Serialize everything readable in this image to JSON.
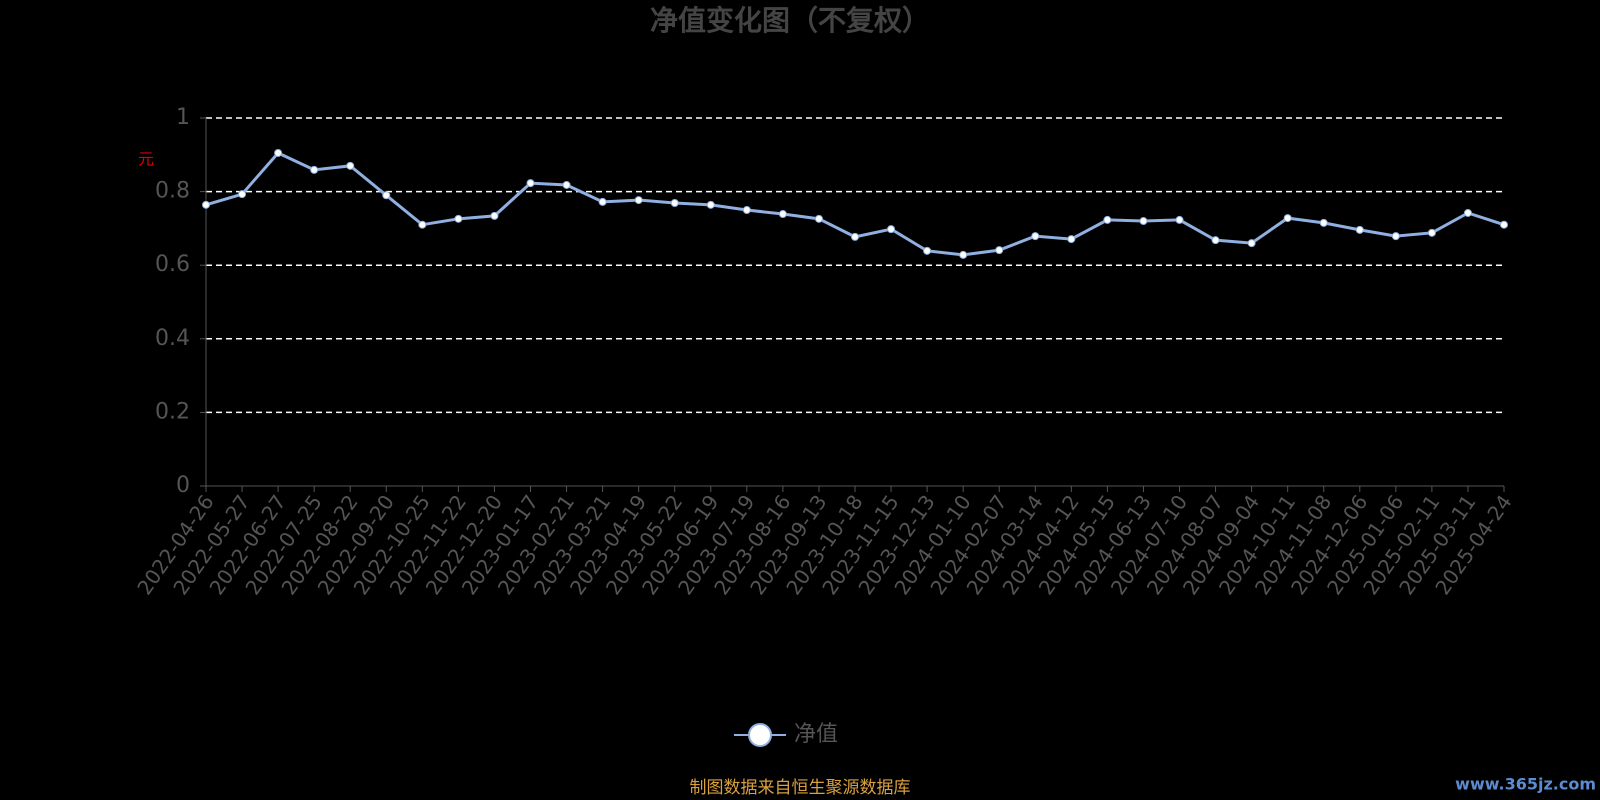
{
  "chart_data": {
    "type": "line",
    "title": "净值变化图（不复权）",
    "y_label": "元",
    "categories": [
      "2022-04-26",
      "2022-05-27",
      "2022-06-27",
      "2022-07-25",
      "2022-08-22",
      "2022-09-20",
      "2022-10-25",
      "2022-11-22",
      "2022-12-20",
      "2023-01-17",
      "2023-02-21",
      "2023-03-21",
      "2023-04-19",
      "2023-05-22",
      "2023-06-19",
      "2023-07-19",
      "2023-08-16",
      "2023-09-13",
      "2023-10-18",
      "2023-11-15",
      "2023-12-13",
      "2024-01-10",
      "2024-02-07",
      "2024-03-14",
      "2024-04-12",
      "2024-05-15",
      "2024-06-13",
      "2024-07-10",
      "2024-08-07",
      "2024-09-04",
      "2024-10-11",
      "2024-11-08",
      "2024-12-06",
      "2025-01-06",
      "2025-02-11",
      "2025-03-11",
      "2025-04-24"
    ],
    "series": [
      {
        "name": "净值",
        "color": "#8fb0e0",
        "values": [
          0.764,
          0.793,
          0.905,
          0.859,
          0.87,
          0.79,
          0.71,
          0.726,
          0.734,
          0.823,
          0.818,
          0.772,
          0.777,
          0.769,
          0.764,
          0.75,
          0.739,
          0.726,
          0.677,
          0.698,
          0.639,
          0.628,
          0.641,
          0.679,
          0.671,
          0.723,
          0.72,
          0.723,
          0.668,
          0.66,
          0.728,
          0.715,
          0.696,
          0.679,
          0.688,
          0.742,
          0.71
        ]
      }
    ],
    "ylim": [
      0,
      1
    ],
    "yticks": [
      0,
      0.2,
      0.4,
      0.6,
      0.8,
      1
    ],
    "grid": true,
    "source": "制图数据来自恒生聚源数据库",
    "watermark": "www.365jz.com"
  }
}
